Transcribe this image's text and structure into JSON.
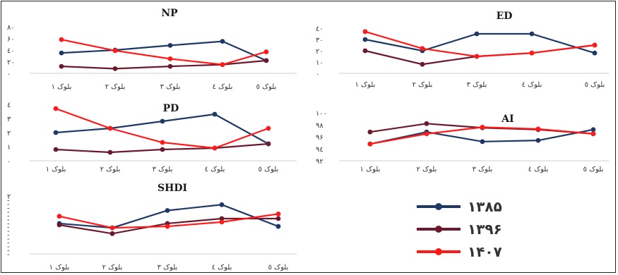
{
  "colors": {
    "s1385": "#1f3864",
    "s1396": "#6b1a2e",
    "s1407": "#ff1a1a"
  },
  "legend": [
    {
      "name": "۱۳۸۵",
      "color": "#1f3864"
    },
    {
      "name": "۱۳۹۶",
      "color": "#6b1a2e"
    },
    {
      "name": "۱۴۰۷",
      "color": "#ff1a1a"
    }
  ],
  "chart_data": [
    {
      "type": "line",
      "title": "NP",
      "categories": [
        "بلوک ۱",
        "بلوک ۲",
        "بلوک ۳",
        "بلوک ٤",
        "بلوک ٥"
      ],
      "yticks": [
        "۰",
        "۲۰",
        "٤۰",
        "۶۰",
        "۸۰"
      ],
      "ylim": [
        0,
        80
      ],
      "series": [
        {
          "name": "۱۳۸۵",
          "values": [
            35,
            40,
            48,
            55,
            22
          ]
        },
        {
          "name": "۱۳۹۶",
          "values": [
            12,
            8,
            12,
            15,
            22
          ]
        },
        {
          "name": "۱۴۰۷",
          "values": [
            58,
            39,
            25,
            15,
            37
          ]
        }
      ]
    },
    {
      "type": "line",
      "title": "ED",
      "categories": [
        "بلوک ۱",
        "بلوک ۲",
        "بلوک ۳",
        "بلوک ٤",
        "بلوک ٥"
      ],
      "yticks": [
        "۰",
        "۱۰",
        "۲۰",
        "۳۰",
        "٤۰"
      ],
      "ylim": [
        0,
        40
      ],
      "series": [
        {
          "name": "۱۳۸۵",
          "values": [
            30,
            20,
            35,
            35,
            18
          ]
        },
        {
          "name": "۱۳۹۶",
          "values": [
            20,
            8,
            15,
            18,
            25
          ]
        },
        {
          "name": "۱۴۰۷",
          "values": [
            37,
            22,
            15,
            18,
            25
          ]
        }
      ]
    },
    {
      "type": "line",
      "title": "PD",
      "categories": [
        "بلوک ۱",
        "بلوک ۲",
        "بلوک ۳",
        "بلوک ٤",
        "بلوک ٥"
      ],
      "yticks": [
        "۰",
        "۱",
        "۲",
        "۳",
        "٤"
      ],
      "ylim": [
        0,
        4
      ],
      "series": [
        {
          "name": "۱۳۸۵",
          "values": [
            2.0,
            2.3,
            2.8,
            3.3,
            1.2
          ]
        },
        {
          "name": "۱۳۹۶",
          "values": [
            0.8,
            0.6,
            0.8,
            0.9,
            1.2
          ]
        },
        {
          "name": "۱۴۰۷",
          "values": [
            3.7,
            2.3,
            1.3,
            0.9,
            2.3
          ]
        }
      ]
    },
    {
      "type": "line",
      "title": "AI",
      "categories": [
        "بلوک ۱",
        "بلوک ۲",
        "بلوک ۳",
        "بلوک ٤",
        "بلوک ٥"
      ],
      "yticks": [
        "۹۲",
        "۹٤",
        "۹۶",
        "۹۸",
        "۱۰۰"
      ],
      "ylim": [
        92,
        100
      ],
      "series": [
        {
          "name": "۱۳۸۵",
          "values": [
            94.8,
            96.8,
            95.2,
            95.4,
            97.2
          ]
        },
        {
          "name": "۱۳۹۶",
          "values": [
            96.8,
            98.2,
            97.5,
            97.2,
            96.5
          ]
        },
        {
          "name": "۱۴۰۷",
          "values": [
            94.8,
            96.5,
            97.6,
            97.3,
            96.5
          ]
        }
      ]
    },
    {
      "type": "line",
      "title": "SHDI",
      "categories": [
        "بلوک ۱",
        "بلوک ۲",
        "بلوک ۳",
        "بلوک ٤",
        "بلوک ٥"
      ],
      "yticks": [
        "",
        "",
        "",
        "",
        "",
        "",
        "",
        "",
        "",
        "",
        "",
        "",
        "",
        "",
        "",
        "۲"
      ],
      "ylim": [
        0,
        2
      ],
      "series": [
        {
          "name": "۱۳۸۵",
          "values": [
            1.05,
            0.9,
            1.5,
            1.7,
            0.95
          ]
        },
        {
          "name": "۱۳۹۶",
          "values": [
            1.0,
            0.7,
            1.05,
            1.22,
            1.22
          ]
        },
        {
          "name": "۱۴۰۷",
          "values": [
            1.3,
            0.9,
            0.95,
            1.1,
            1.38
          ]
        }
      ]
    }
  ]
}
